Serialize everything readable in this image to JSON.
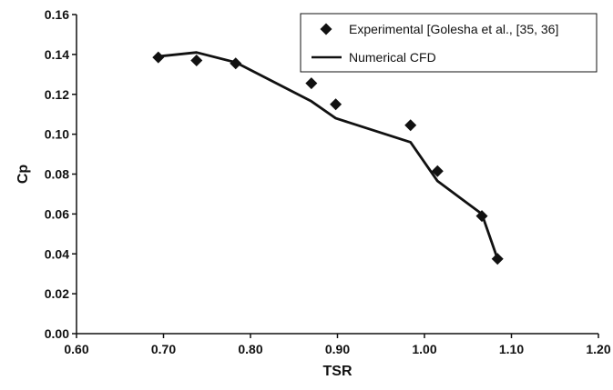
{
  "chart_data": {
    "type": "scatter",
    "title": "",
    "xlabel": "TSR",
    "ylabel": "Cp",
    "xlim": [
      0.6,
      1.2
    ],
    "ylim": [
      0.0,
      0.16
    ],
    "x_ticks": [
      "0.60",
      "0.70",
      "0.80",
      "0.90",
      "1.00",
      "1.10",
      "1.20"
    ],
    "y_ticks": [
      "0.00",
      "0.02",
      "0.04",
      "0.06",
      "0.08",
      "0.10",
      "0.12",
      "0.14",
      "0.16"
    ],
    "grid": false,
    "legend_position": "top-right",
    "series": [
      {
        "name": "Experimental [Golesha et al., [35, 36]",
        "style": "markers",
        "marker": "diamond",
        "color": "#111111",
        "points": [
          {
            "x": 0.694,
            "y": 0.1385
          },
          {
            "x": 0.738,
            "y": 0.137
          },
          {
            "x": 0.783,
            "y": 0.1355
          },
          {
            "x": 0.87,
            "y": 0.1255
          },
          {
            "x": 0.898,
            "y": 0.115
          },
          {
            "x": 0.984,
            "y": 0.1045
          },
          {
            "x": 1.015,
            "y": 0.0815
          },
          {
            "x": 1.066,
            "y": 0.059
          },
          {
            "x": 1.084,
            "y": 0.0375
          }
        ]
      },
      {
        "name": "Numerical CFD",
        "style": "line",
        "color": "#111111",
        "points": [
          {
            "x": 0.694,
            "y": 0.139
          },
          {
            "x": 0.738,
            "y": 0.141
          },
          {
            "x": 0.783,
            "y": 0.136
          },
          {
            "x": 0.87,
            "y": 0.1165
          },
          {
            "x": 0.898,
            "y": 0.108
          },
          {
            "x": 0.984,
            "y": 0.096
          },
          {
            "x": 1.015,
            "y": 0.0765
          },
          {
            "x": 1.066,
            "y": 0.06
          },
          {
            "x": 1.084,
            "y": 0.0375
          }
        ]
      }
    ]
  }
}
